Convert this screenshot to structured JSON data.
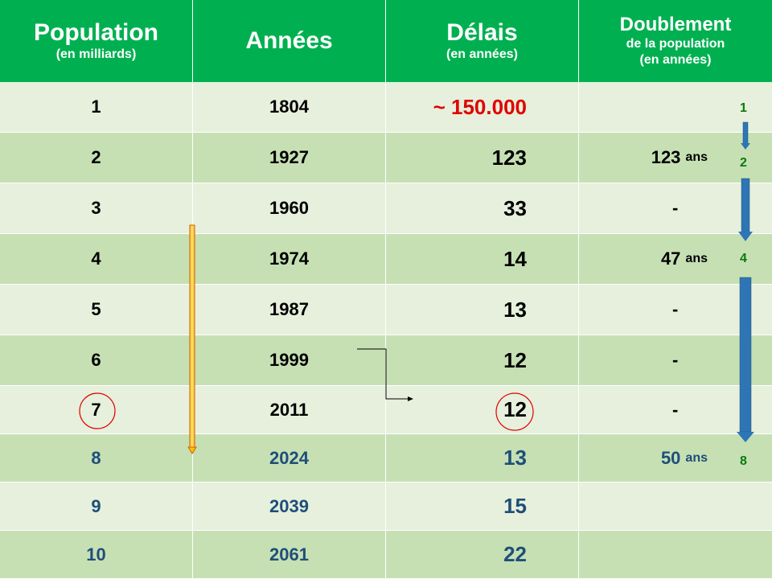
{
  "header": {
    "col1_title": "Population",
    "col1_sub": "(en milliards)",
    "col2_title": "Années",
    "col3_title": "Délais",
    "col3_sub": "(en années)",
    "col4_title": "Doublement",
    "col4_sub1": "de la population",
    "col4_sub2": "(en années)"
  },
  "rows": [
    {
      "pop": "1",
      "year": "1804",
      "delay": "~ 150.000",
      "double": "",
      "unit": ""
    },
    {
      "pop": "2",
      "year": "1927",
      "delay": "123",
      "double": "123",
      "unit": "ans"
    },
    {
      "pop": "3",
      "year": "1960",
      "delay": "33",
      "double": "-",
      "unit": ""
    },
    {
      "pop": "4",
      "year": "1974",
      "delay": "14",
      "double": "47",
      "unit": "ans"
    },
    {
      "pop": "5",
      "year": "1987",
      "delay": "13",
      "double": "-",
      "unit": ""
    },
    {
      "pop": "6",
      "year": "1999",
      "delay": "12",
      "double": "-",
      "unit": ""
    },
    {
      "pop": "7",
      "year": "2011",
      "delay": "12",
      "double": "-",
      "unit": ""
    },
    {
      "pop": "8",
      "year": "2024",
      "delay": "13",
      "double": "50",
      "unit": "ans"
    },
    {
      "pop": "9",
      "year": "2039",
      "delay": "15",
      "double": "",
      "unit": ""
    },
    {
      "pop": "10",
      "year": "2061",
      "delay": "22",
      "double": "",
      "unit": ""
    }
  ],
  "markers": [
    "1",
    "2",
    "4",
    "8"
  ],
  "colors": {
    "header_green": "#00b050",
    "row_light": "#e6f0dc",
    "row_dark": "#c6e0b4",
    "projection_blue": "#1f4e79",
    "highlight_red": "#e00000",
    "marker_green": "#0a7a0a",
    "arrow_blue": "#2e75b6",
    "arrow_orange": "#ffc000"
  }
}
